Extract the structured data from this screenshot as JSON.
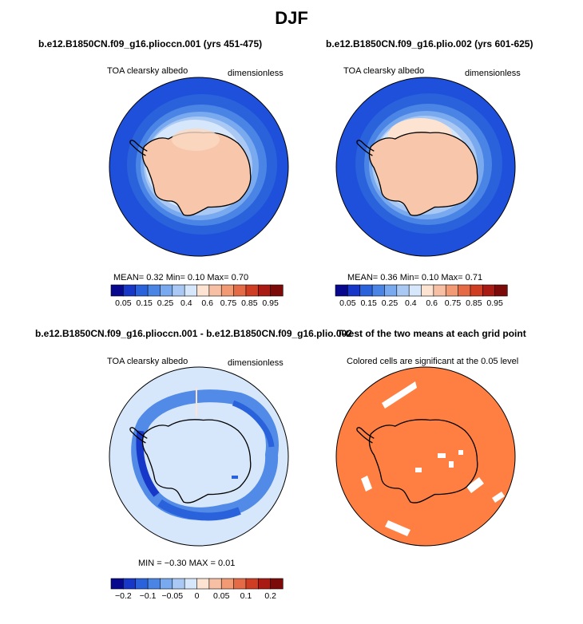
{
  "title": "DJF",
  "panels": [
    {
      "id": "p1",
      "title": "b.e12.B1850CN.f09_g16.plioccn.001 (yrs 451-475)",
      "left_label": "TOA clearsky albedo",
      "right_label": "dimensionless",
      "stats_text": "MEAN=     0.32   Min=     0.10   Max=     0.70"
    },
    {
      "id": "p2",
      "title": "b.e12.B1850CN.f09_g16.plio.002 (yrs 601-625)",
      "left_label": "TOA clearsky albedo",
      "right_label": "dimensionless",
      "stats_text": "MEAN=     0.36   Min=     0.10   Max=     0.71"
    },
    {
      "id": "p3",
      "title": "b.e12.B1850CN.f09_g16.plioccn.001 - b.e12.B1850CN.f09_g16.plio.002",
      "left_label": "TOA clearsky albedo",
      "right_label": "dimensionless",
      "stats_text": "MIN =   −0.30   MAX =      0.01"
    },
    {
      "id": "p4",
      "title": "T-test of the two means at each grid point",
      "left_label": "Colored cells are significant at the 0.05 level"
    }
  ],
  "colorbars": {
    "abs": {
      "colors": [
        "#08088e",
        "#1637c8",
        "#2a62dc",
        "#4a85e6",
        "#79a9ee",
        "#a9c9f4",
        "#d6e7fb",
        "#fde3d2",
        "#f7bfa3",
        "#f19a74",
        "#e56b47",
        "#cf3d22",
        "#a81a12",
        "#7b0a08"
      ],
      "labels": [
        "0.05",
        "0.15",
        "0.25",
        "0.4",
        "0.6",
        "0.75",
        "0.85",
        "0.95"
      ]
    },
    "diff": {
      "colors": [
        "#08088e",
        "#1637c8",
        "#2a62dc",
        "#4a85e6",
        "#79a9ee",
        "#a9c9f4",
        "#d6e7fb",
        "#fde3d2",
        "#f7bfa3",
        "#f19a74",
        "#e56b47",
        "#cf3d22",
        "#a81a12",
        "#7b0a08"
      ],
      "labels": [
        "−0.2",
        "−0.1",
        "−0.05",
        "0",
        "0.05",
        "0.1",
        "0.2"
      ]
    }
  },
  "chart_data": [
    {
      "type": "heatmap",
      "title": "b.e12.B1850CN.f09_g16.plioccn.001 (yrs 451-475)",
      "variable": "TOA clearsky albedo",
      "units": "dimensionless",
      "projection": "south polar stereographic",
      "mean": 0.32,
      "min": 0.1,
      "max": 0.7,
      "levels": [
        0.05,
        0.1,
        0.15,
        0.2,
        0.25,
        0.3,
        0.4,
        0.5,
        0.6,
        0.7,
        0.75,
        0.8,
        0.85,
        0.9,
        0.95
      ],
      "colormap": "blue-white-red"
    },
    {
      "type": "heatmap",
      "title": "b.e12.B1850CN.f09_g16.plio.002 (yrs 601-625)",
      "variable": "TOA clearsky albedo",
      "units": "dimensionless",
      "projection": "south polar stereographic",
      "mean": 0.36,
      "min": 0.1,
      "max": 0.71,
      "levels": [
        0.05,
        0.1,
        0.15,
        0.2,
        0.25,
        0.3,
        0.4,
        0.5,
        0.6,
        0.7,
        0.75,
        0.8,
        0.85,
        0.9,
        0.95
      ],
      "colormap": "blue-white-red"
    },
    {
      "type": "heatmap",
      "title": "b.e12.B1850CN.f09_g16.plioccn.001 - b.e12.B1850CN.f09_g16.plio.002",
      "variable": "TOA clearsky albedo",
      "units": "dimensionless",
      "projection": "south polar stereographic",
      "min": -0.3,
      "max": 0.01,
      "levels": [
        -0.3,
        -0.2,
        -0.15,
        -0.1,
        -0.07,
        -0.05,
        -0.02,
        0,
        0.02,
        0.05,
        0.07,
        0.1,
        0.15,
        0.2,
        0.3
      ],
      "colormap": "blue-white-red"
    },
    {
      "type": "heatmap",
      "title": "T-test of the two means at each grid point",
      "annotation": "Colored cells are significant at the 0.05 level",
      "projection": "south polar stereographic",
      "fill_color": "#ff7f42"
    }
  ]
}
